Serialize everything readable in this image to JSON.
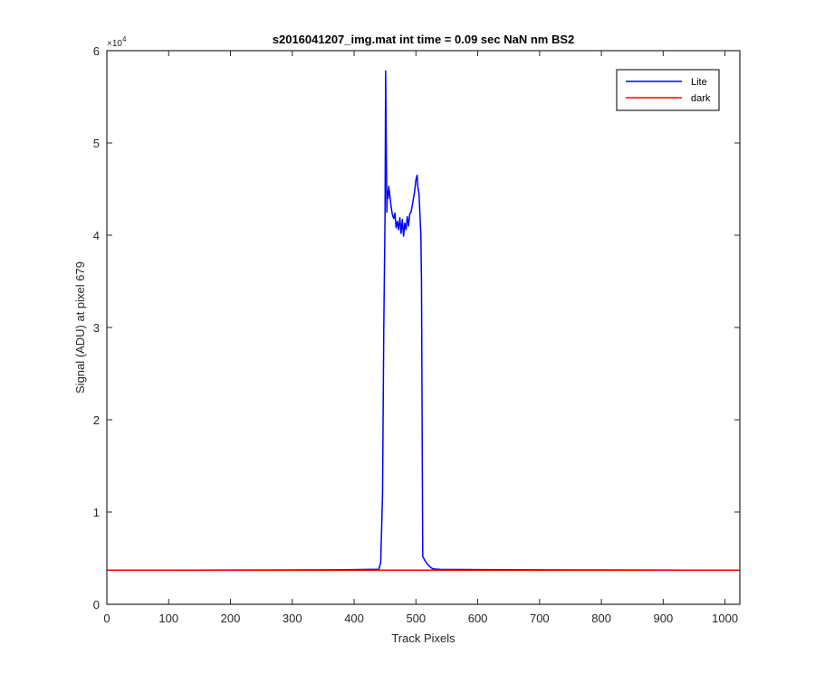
{
  "chart_data": {
    "type": "line",
    "title": "s2016041207_img.mat int time = 0.09 sec  NaN nm BS2",
    "xlabel": "Track Pixels",
    "ylabel": "Signal (ADU) at pixel 679",
    "xlim": [
      0,
      1024
    ],
    "ylim": [
      0,
      60000
    ],
    "x_ticks": [
      0,
      100,
      200,
      300,
      400,
      500,
      600,
      700,
      800,
      900,
      1000
    ],
    "y_ticks": [
      0,
      10000,
      20000,
      30000,
      40000,
      50000,
      60000
    ],
    "x_tick_labels": [
      "0",
      "100",
      "200",
      "300",
      "400",
      "500",
      "600",
      "700",
      "800",
      "900",
      "1000"
    ],
    "y_tick_labels": [
      "0",
      "1",
      "2",
      "3",
      "4",
      "5",
      "6"
    ],
    "y_exponent_label": "×10",
    "y_exponent_power": "4",
    "grid": false,
    "legend_position": "top-right",
    "series": [
      {
        "name": "Lite",
        "color": "#0000ff",
        "points": [
          [
            0,
            3700
          ],
          [
            100,
            3700
          ],
          [
            200,
            3710
          ],
          [
            300,
            3720
          ],
          [
            350,
            3740
          ],
          [
            400,
            3760
          ],
          [
            440,
            3800
          ],
          [
            443,
            4500
          ],
          [
            446,
            12000
          ],
          [
            448,
            30000
          ],
          [
            450,
            42000
          ],
          [
            451,
            57800
          ],
          [
            452,
            50000
          ],
          [
            453,
            42500
          ],
          [
            454,
            44800
          ],
          [
            455,
            44000
          ],
          [
            456,
            45300
          ],
          [
            458,
            44200
          ],
          [
            460,
            43000
          ],
          [
            462,
            42200
          ],
          [
            464,
            41800
          ],
          [
            466,
            42400
          ],
          [
            468,
            40800
          ],
          [
            470,
            41500
          ],
          [
            472,
            40600
          ],
          [
            474,
            41900
          ],
          [
            476,
            40200
          ],
          [
            478,
            41700
          ],
          [
            480,
            39900
          ],
          [
            482,
            41300
          ],
          [
            484,
            40600
          ],
          [
            486,
            42000
          ],
          [
            488,
            41000
          ],
          [
            490,
            42300
          ],
          [
            492,
            42500
          ],
          [
            494,
            43200
          ],
          [
            496,
            44000
          ],
          [
            498,
            44800
          ],
          [
            500,
            46000
          ],
          [
            502,
            46500
          ],
          [
            503,
            45300
          ],
          [
            505,
            44500
          ],
          [
            506,
            43000
          ],
          [
            508,
            40000
          ],
          [
            509,
            35000
          ],
          [
            510,
            20000
          ],
          [
            511,
            5200
          ],
          [
            514,
            4800
          ],
          [
            518,
            4400
          ],
          [
            522,
            4100
          ],
          [
            526,
            3900
          ],
          [
            530,
            3820
          ],
          [
            540,
            3790
          ],
          [
            600,
            3760
          ],
          [
            700,
            3740
          ],
          [
            800,
            3720
          ],
          [
            900,
            3710
          ],
          [
            1024,
            3700
          ]
        ]
      },
      {
        "name": "dark",
        "color": "#ff0000",
        "points": [
          [
            0,
            3700
          ],
          [
            1024,
            3700
          ]
        ]
      }
    ]
  }
}
